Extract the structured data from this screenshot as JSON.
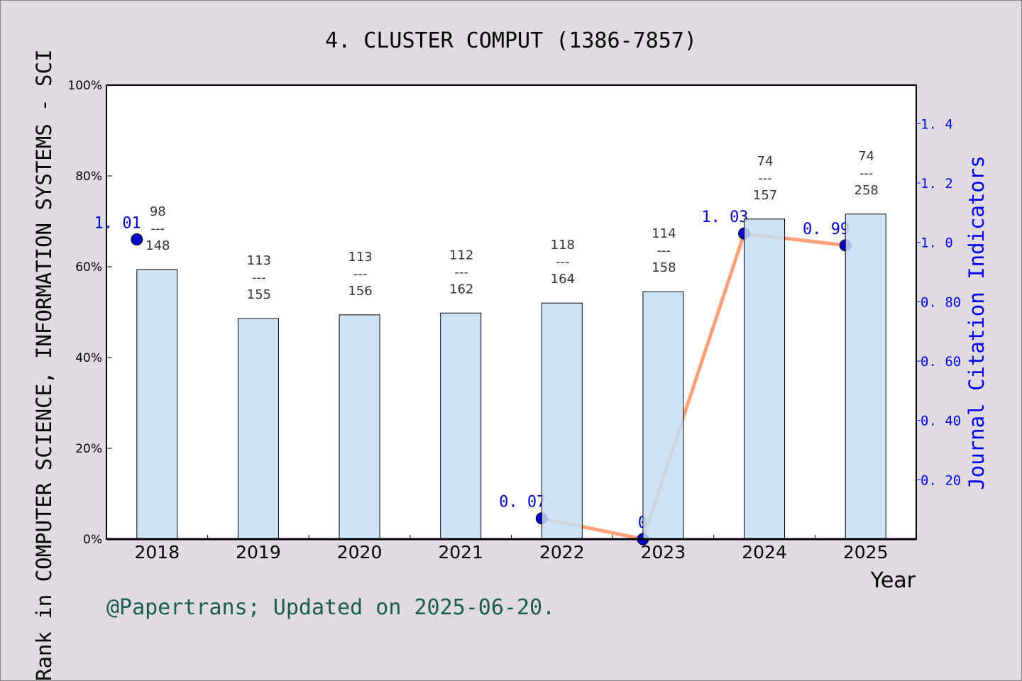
{
  "chart_data": {
    "type": "bar+line",
    "title": "4. CLUSTER COMPUT (1386-7857)",
    "xlabel": "Year",
    "ylabel": "Rank in COMPUTER SCIENCE, INFORMATION SYSTEMS - SCI",
    "ylabel_right": "Journal Citation Indicators",
    "categories": [
      "2018",
      "2019",
      "2020",
      "2021",
      "2022",
      "2023",
      "2024",
      "2025"
    ],
    "ylim": [
      0,
      100
    ],
    "yticks": [
      "0%",
      "20%",
      "40%",
      "60%",
      "80%",
      "100%"
    ],
    "ylim_right": [
      0,
      1.53
    ],
    "yticks_right": [
      {
        "v": 0.2,
        "label": "0. 20"
      },
      {
        "v": 0.4,
        "label": "0. 40"
      },
      {
        "v": 0.6,
        "label": "0. 60"
      },
      {
        "v": 0.8,
        "label": "0. 80"
      },
      {
        "v": 1.0,
        "label": "1. 0"
      },
      {
        "v": 1.2,
        "label": "1. 2"
      },
      {
        "v": 1.4,
        "label": "1. 4"
      }
    ],
    "bars": {
      "values": [
        59.4,
        48.6,
        49.4,
        49.8,
        52.0,
        54.5,
        70.5,
        71.6
      ],
      "rank": [
        "98",
        "113",
        "113",
        "112",
        "118",
        "114",
        "74",
        "74"
      ],
      "total": [
        "148",
        "155",
        "156",
        "162",
        "164",
        "158",
        "157",
        "258"
      ],
      "color": "#c5dff5"
    },
    "line": {
      "values": [
        1.01,
        null,
        null,
        null,
        0.07,
        0,
        1.03,
        0.99
      ],
      "labels": [
        "1. 01",
        "",
        "",
        "",
        "0. 07",
        "0",
        "1. 03",
        "0. 99"
      ],
      "line_color": "#ffa07a",
      "marker_color": "#0000cc"
    },
    "grid": false
  },
  "credit": "@Papertrans; Updated on 2025-06-20."
}
